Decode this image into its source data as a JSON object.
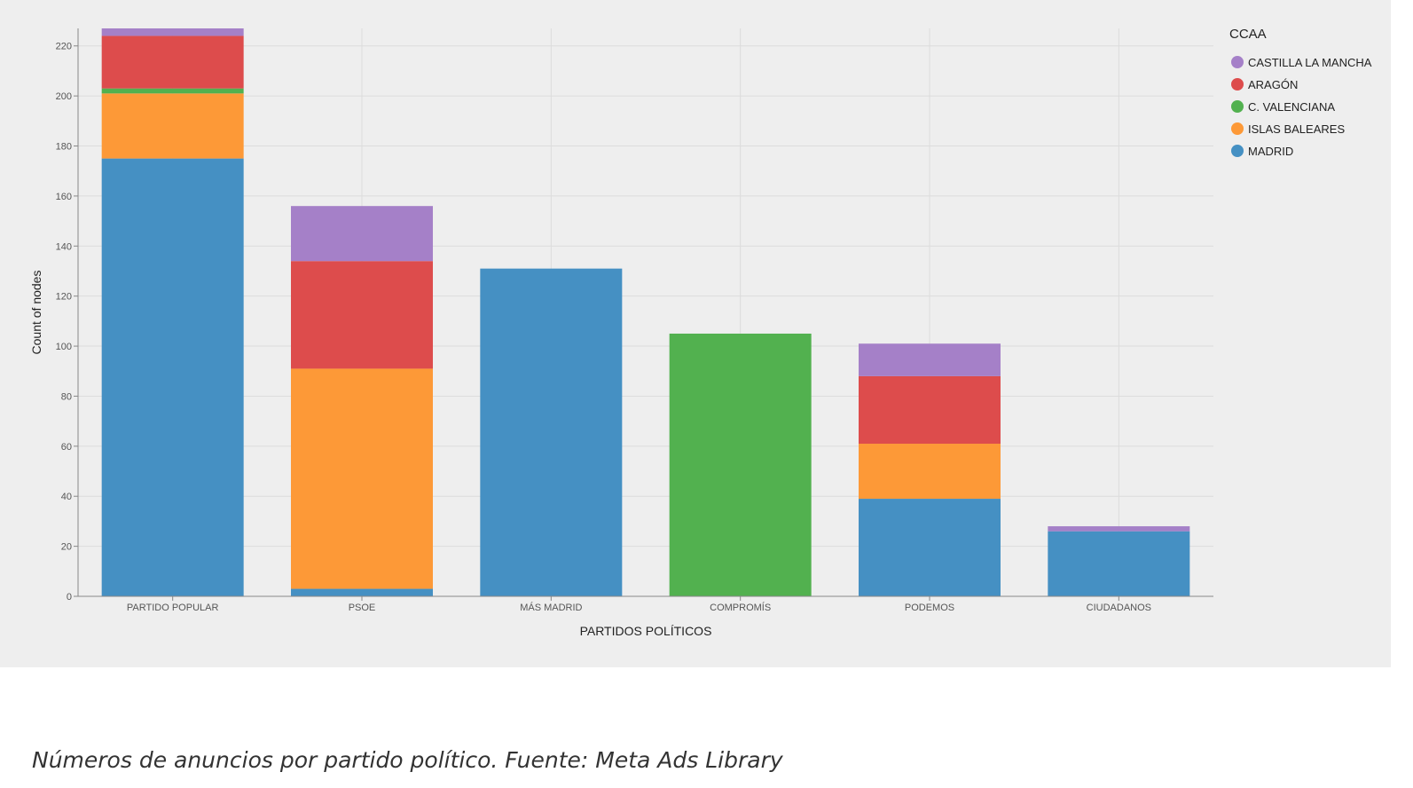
{
  "chart_data": {
    "type": "bar",
    "stacked": true,
    "categories": [
      "PARTIDO POPULAR",
      "PSOE",
      "MÁS MADRID",
      "COMPROMÍS",
      "PODEMOS",
      "CIUDADANOS"
    ],
    "series": [
      {
        "name": "MADRID",
        "color": "#4590c3",
        "values": [
          175,
          3,
          131,
          0,
          39,
          26
        ]
      },
      {
        "name": "ISLAS BALEARES",
        "color": "#fd9937",
        "values": [
          26,
          88,
          0,
          0,
          22,
          0
        ]
      },
      {
        "name": "C. VALENCIANA",
        "color": "#52b14f",
        "values": [
          2,
          0,
          0,
          105,
          0,
          0
        ]
      },
      {
        "name": "ARAGÓN",
        "color": "#dd4c4c",
        "values": [
          21,
          43,
          0,
          0,
          27,
          0
        ]
      },
      {
        "name": "CASTILLA LA MANCHA",
        "color": "#a580c8",
        "values": [
          3,
          22,
          0,
          0,
          13,
          2
        ]
      }
    ],
    "xlabel": "PARTIDOS POLÍTICOS",
    "ylabel": "Count of nodes",
    "ylim": [
      0,
      227
    ],
    "yticks": [
      0,
      20,
      40,
      60,
      80,
      100,
      120,
      140,
      160,
      180,
      200,
      220
    ],
    "grid": true,
    "legend": {
      "title": "CCAA",
      "position": "top-right",
      "order": [
        "CASTILLA LA MANCHA",
        "ARAGÓN",
        "C. VALENCIANA",
        "ISLAS BALEARES",
        "MADRID"
      ]
    }
  },
  "caption": "Números de anuncios por partido político. Fuente: Meta Ads Library"
}
